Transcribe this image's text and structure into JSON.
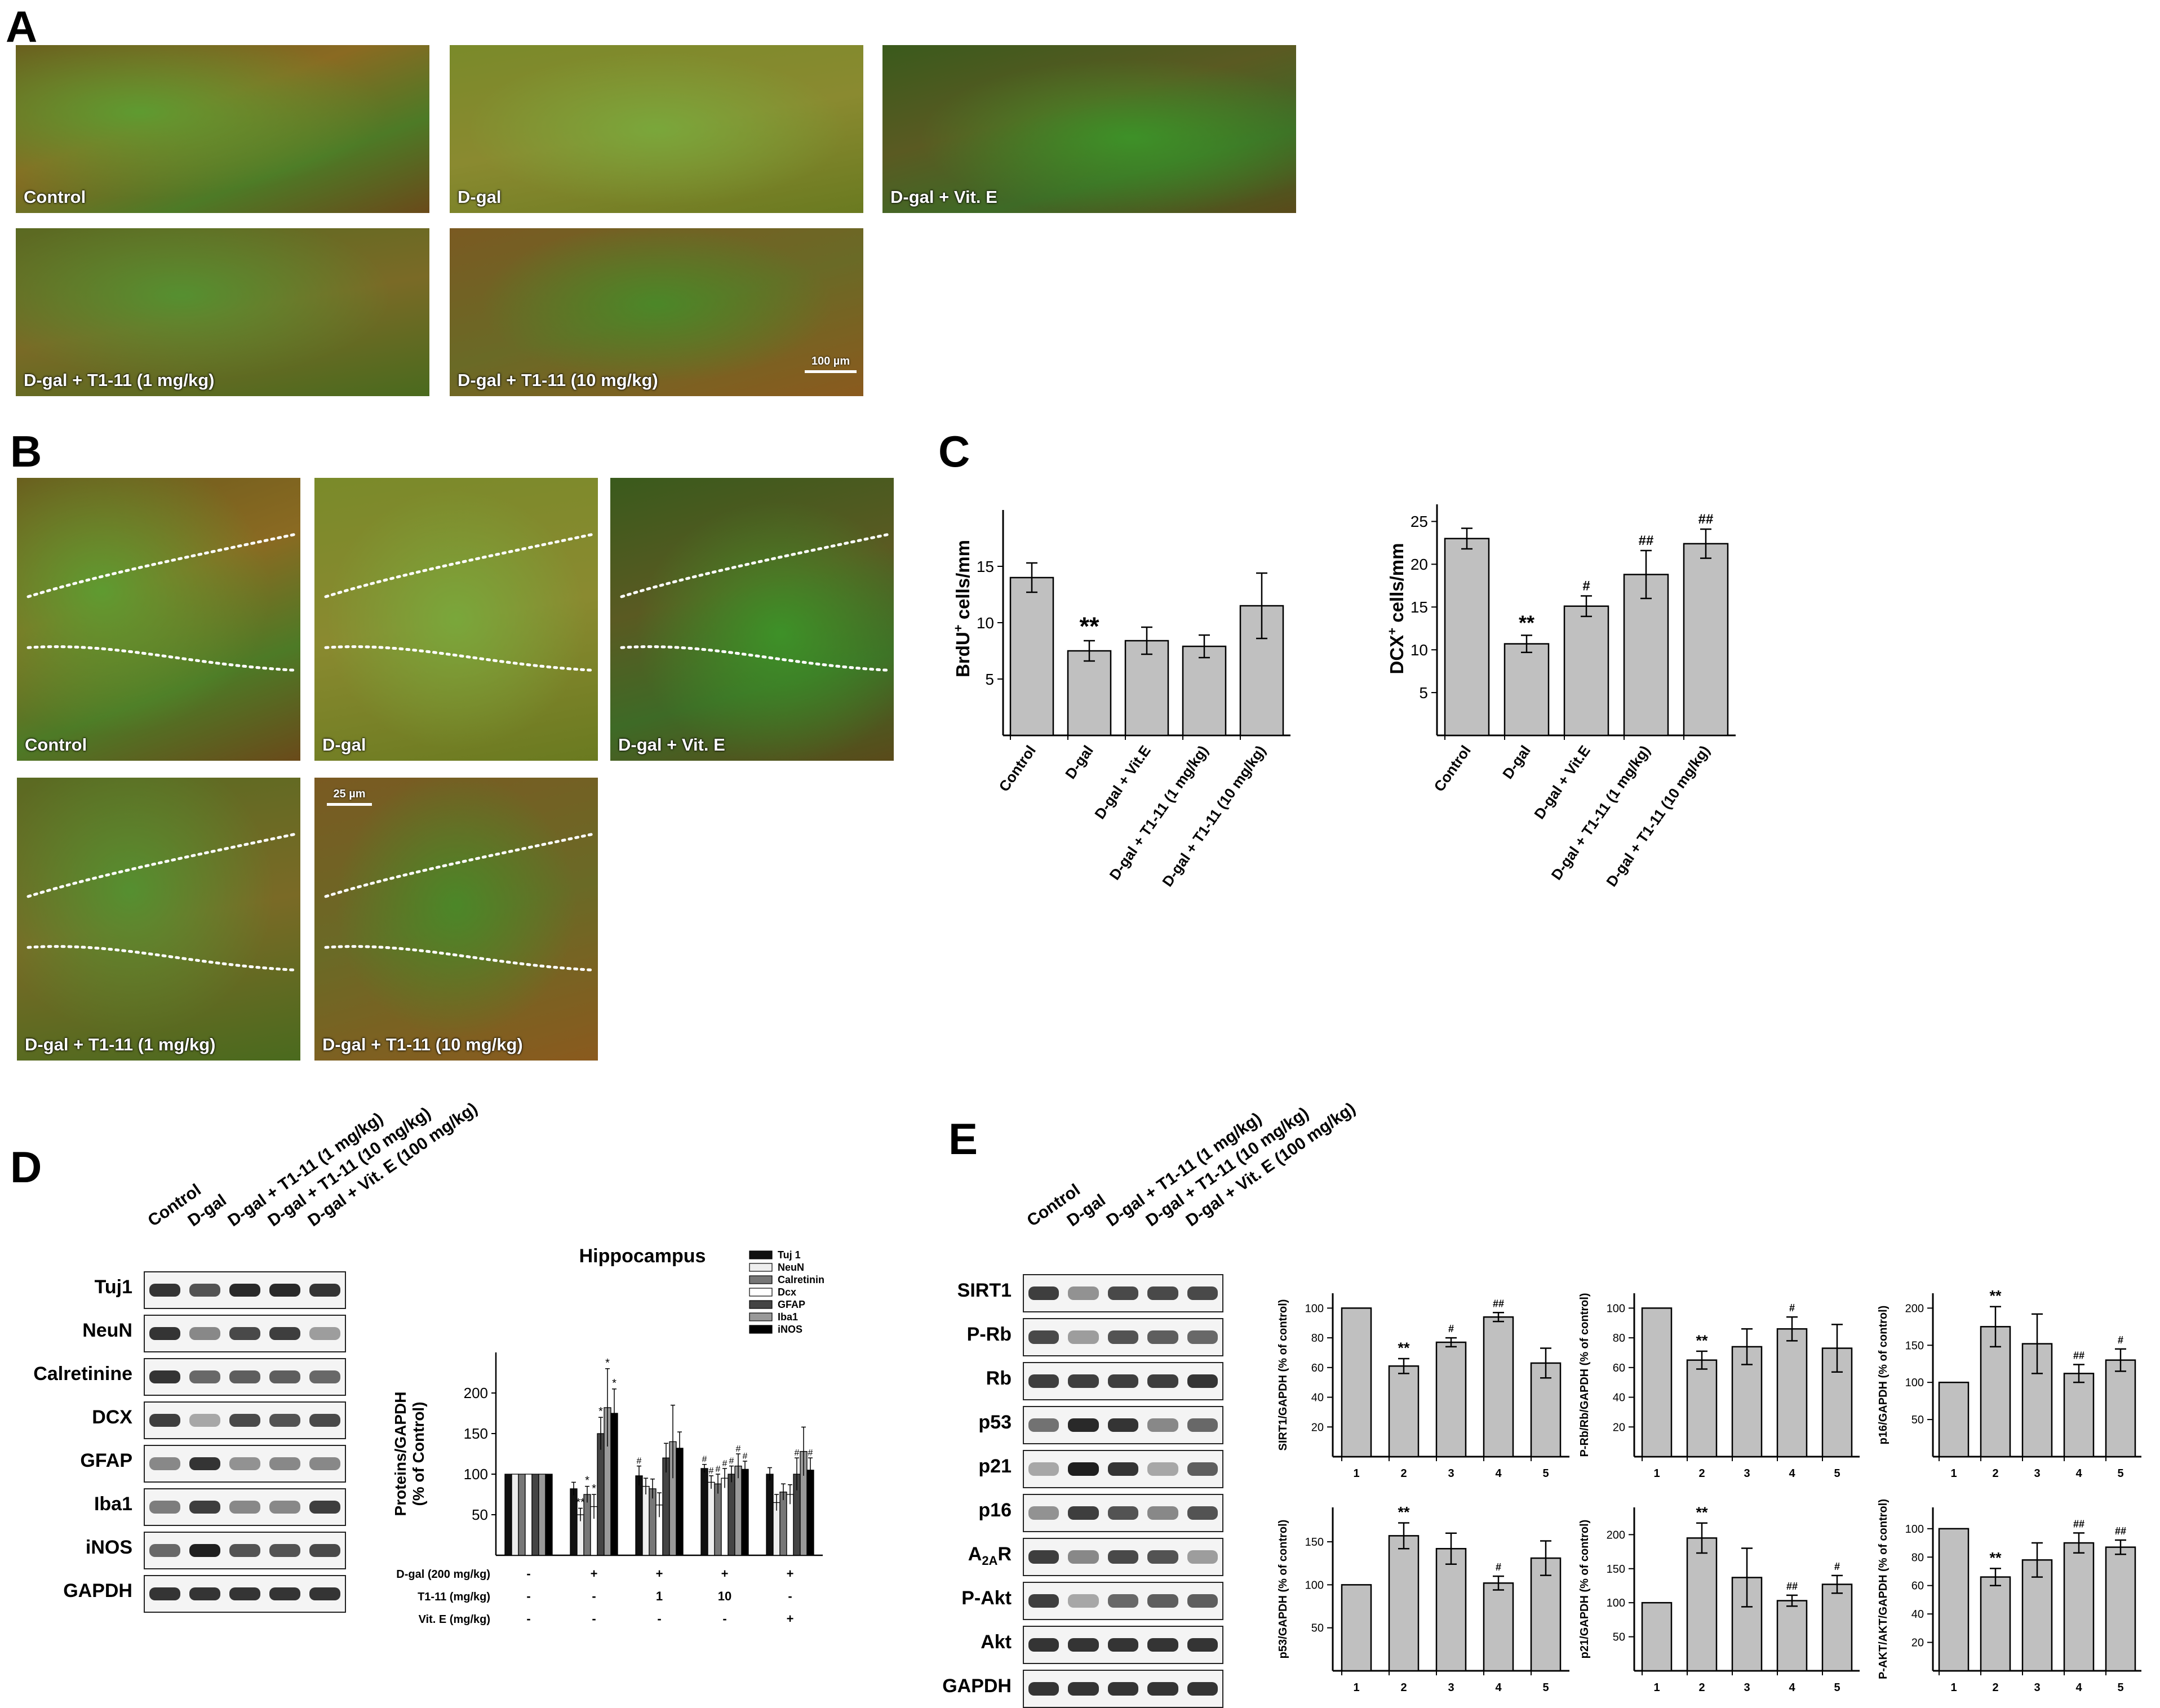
{
  "panels": {
    "A": {
      "letter": "A",
      "images": [
        {
          "label": "Control"
        },
        {
          "label": "D-gal"
        },
        {
          "label": "D-gal + Vit. E"
        },
        {
          "label": "D-gal + T1-11 (1 mg/kg)"
        },
        {
          "label": "D-gal + T1-11 (10 mg/kg)"
        }
      ],
      "scale_bar": "100 µm"
    },
    "B": {
      "letter": "B",
      "images": [
        {
          "label": "Control"
        },
        {
          "label": "D-gal"
        },
        {
          "label": "D-gal + Vit. E"
        },
        {
          "label": "D-gal + T1-11 (1 mg/kg)"
        },
        {
          "label": "D-gal + T1-11 (10 mg/kg)"
        }
      ],
      "scale_bar": "25 µm"
    },
    "C": {
      "letter": "C"
    },
    "D": {
      "letter": "D",
      "columns": [
        "Control",
        "D-gal",
        "D-gal + T1-11 (1 mg/kg)",
        "D-gal + T1-11 (10 mg/kg)",
        "D-gal + Vit. E (100 mg/kg)"
      ],
      "rows": [
        "Tuj1",
        "NeuN",
        "Calretinine",
        "DCX",
        "GFAP",
        "Iba1",
        "iNOS",
        "GAPDH"
      ]
    },
    "E": {
      "letter": "E",
      "columns": [
        "Control",
        "D-gal",
        "D-gal + T1-11 (1 mg/kg)",
        "D-gal + T1-11 (10 mg/kg)",
        "D-gal + Vit. E (100 mg/kg)"
      ],
      "rows": [
        "SIRT1",
        "P-Rb",
        "Rb",
        "p53",
        "p21",
        "p16",
        "A2AR",
        "P-Akt",
        "Akt",
        "GAPDH"
      ]
    }
  },
  "colors": {
    "bar_fill": "#c0c0c0",
    "bar_stroke": "#000000",
    "micro_green": "#3f8a2a",
    "micro_red": "#9a5a2a"
  },
  "chart_data": [
    {
      "id": "C-brdu",
      "type": "bar",
      "categories": [
        "Control",
        "D-gal",
        "D-gal + Vit.E",
        "D-gal + T1-11 (1 mg/kg)",
        "D-gal + T1-11 (10 mg/kg)"
      ],
      "values": [
        14,
        7.5,
        8.4,
        7.9,
        11.5
      ],
      "errors": [
        1.3,
        0.9,
        1.2,
        1.0,
        2.9
      ],
      "annotations": [
        "",
        "**",
        "",
        "",
        ""
      ],
      "ylabel_main": "BrdU",
      "ylabel_sup": "+",
      "ylabel_rest": " cells/mm",
      "ylim": [
        0,
        20
      ],
      "yticks": [
        5,
        10,
        15
      ]
    },
    {
      "id": "C-dcx",
      "type": "bar",
      "categories": [
        "Control",
        "D-gal",
        "D-gal + Vit.E",
        "D-gal + T1-11 (1 mg/kg)",
        "D-gal + T1-11 (10 mg/kg)"
      ],
      "values": [
        23,
        10.7,
        15.1,
        18.8,
        22.4
      ],
      "errors": [
        1.2,
        1.0,
        1.2,
        2.8,
        1.7
      ],
      "annotations": [
        "",
        "**",
        "#",
        "##",
        "##"
      ],
      "ylabel_main": "DCX",
      "ylabel_sup": "+",
      "ylabel_rest": " cells/mm",
      "ylim": [
        0,
        27
      ],
      "yticks": [
        5,
        10,
        15,
        20,
        25
      ]
    },
    {
      "id": "D-hippocampus",
      "type": "bar",
      "title": "Hippocampus",
      "ylabel": "Proteins/GAPDH",
      "ylabel2": "(% of Control)",
      "ylim": [
        0,
        250
      ],
      "yticks": [
        50,
        100,
        150,
        200
      ],
      "series": [
        {
          "name": "Tuj 1",
          "values": [
            100,
            82,
            98,
            107,
            100
          ],
          "errors": [
            0,
            8,
            12,
            5,
            8
          ],
          "annotations": [
            "",
            "",
            "#",
            "#",
            ""
          ]
        },
        {
          "name": "NeuN",
          "values": [
            100,
            50,
            85,
            90,
            65
          ],
          "errors": [
            0,
            8,
            10,
            8,
            10
          ],
          "annotations": [
            "",
            "**",
            "",
            "#",
            ""
          ]
        },
        {
          "name": "Calretinin",
          "values": [
            100,
            75,
            82,
            88,
            78
          ],
          "errors": [
            0,
            10,
            12,
            12,
            10
          ],
          "annotations": [
            "",
            "*",
            "",
            "#",
            ""
          ]
        },
        {
          "name": "Dcx",
          "values": [
            100,
            60,
            62,
            95,
            75
          ],
          "errors": [
            0,
            15,
            15,
            12,
            12
          ],
          "annotations": [
            "",
            "*",
            "",
            "#",
            ""
          ]
        },
        {
          "name": "GFAP",
          "values": [
            100,
            150,
            120,
            100,
            100
          ],
          "errors": [
            0,
            20,
            18,
            10,
            20
          ],
          "annotations": [
            "",
            "*",
            "",
            "#",
            "#"
          ]
        },
        {
          "name": "Iba1",
          "values": [
            100,
            182,
            140,
            110,
            128
          ],
          "errors": [
            0,
            48,
            45,
            15,
            30
          ],
          "annotations": [
            "",
            "*",
            "",
            "#",
            ""
          ]
        },
        {
          "name": "iNOS",
          "values": [
            100,
            175,
            132,
            106,
            105
          ],
          "errors": [
            0,
            30,
            20,
            10,
            15
          ],
          "annotations": [
            "",
            "*",
            "",
            "#",
            "#"
          ]
        }
      ],
      "treatment_rows": [
        {
          "label": "D-gal (200 mg/kg)",
          "values": [
            "-",
            "+",
            "+",
            "+",
            "+"
          ]
        },
        {
          "label": "T1-11 (mg/kg)",
          "values": [
            "-",
            "-",
            "1",
            "10",
            "-"
          ]
        },
        {
          "label": "Vit. E (mg/kg)",
          "values": [
            "-",
            "-",
            "-",
            "-",
            "+"
          ]
        }
      ]
    },
    {
      "id": "E-sirt1",
      "type": "bar",
      "categories": [
        "1",
        "2",
        "3",
        "4",
        "5"
      ],
      "values": [
        100,
        61,
        77,
        94,
        63
      ],
      "errors": [
        0,
        5,
        3,
        3,
        10
      ],
      "annotations": [
        "",
        "**",
        "#",
        "##",
        ""
      ],
      "ylabel": "SIRT1/GAPDH (% of control)",
      "ylim": [
        0,
        110
      ],
      "yticks": [
        20,
        40,
        60,
        80,
        100
      ]
    },
    {
      "id": "E-prb",
      "type": "bar",
      "categories": [
        "1",
        "2",
        "3",
        "4",
        "5"
      ],
      "values": [
        100,
        65,
        74,
        86,
        73
      ],
      "errors": [
        0,
        6,
        12,
        8,
        16
      ],
      "annotations": [
        "",
        "**",
        "",
        "#",
        ""
      ],
      "ylabel": "P-Rb/Rb/GAPDH (% of control)",
      "ylim": [
        0,
        110
      ],
      "yticks": [
        20,
        40,
        60,
        80,
        100
      ]
    },
    {
      "id": "E-p16",
      "type": "bar",
      "categories": [
        "1",
        "2",
        "3",
        "4",
        "5"
      ],
      "values": [
        100,
        175,
        152,
        112,
        130
      ],
      "errors": [
        0,
        27,
        40,
        12,
        15
      ],
      "annotations": [
        "",
        "**",
        "",
        "##",
        "#"
      ],
      "ylabel": "p16/GAPDH (% of control)",
      "ylim": [
        0,
        220
      ],
      "yticks": [
        50,
        100,
        150,
        200
      ]
    },
    {
      "id": "E-p53",
      "type": "bar",
      "categories": [
        "1",
        "2",
        "3",
        "4",
        "5"
      ],
      "values": [
        100,
        157,
        142,
        102,
        131
      ],
      "errors": [
        0,
        15,
        18,
        8,
        20
      ],
      "annotations": [
        "",
        "**",
        "",
        "#",
        ""
      ],
      "ylabel": "p53/GAPDH (% of control)",
      "ylim": [
        0,
        190
      ],
      "yticks": [
        50,
        100,
        150
      ]
    },
    {
      "id": "E-p21",
      "type": "bar",
      "categories": [
        "1",
        "2",
        "3",
        "4",
        "5"
      ],
      "values": [
        100,
        195,
        137,
        103,
        127
      ],
      "errors": [
        0,
        22,
        43,
        8,
        13
      ],
      "annotations": [
        "",
        "**",
        "",
        "##",
        "#"
      ],
      "ylabel": "p21/GAPDH (% of control)",
      "ylim": [
        0,
        240
      ],
      "yticks": [
        50,
        100,
        150,
        200
      ]
    },
    {
      "id": "E-pakt",
      "type": "bar",
      "categories": [
        "1",
        "2",
        "3",
        "4",
        "5"
      ],
      "values": [
        100,
        66,
        78,
        90,
        87
      ],
      "errors": [
        0,
        6,
        12,
        7,
        5
      ],
      "annotations": [
        "",
        "**",
        "",
        "##",
        "##"
      ],
      "ylabel": "P-AKT/AKT/GAPDH (% of control)",
      "ylim": [
        0,
        115
      ],
      "yticks": [
        20,
        40,
        60,
        80,
        100
      ]
    }
  ]
}
